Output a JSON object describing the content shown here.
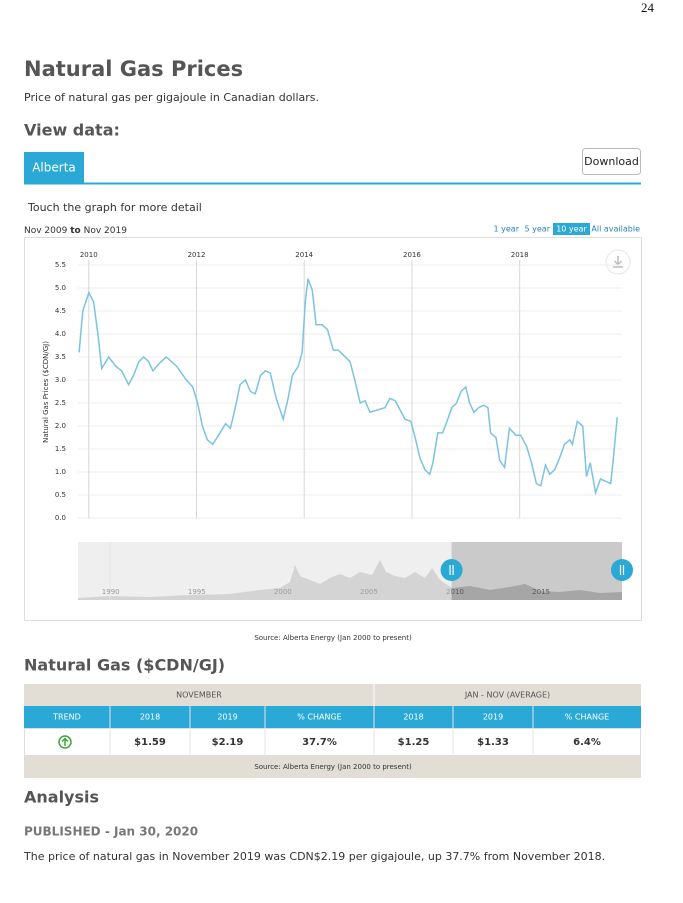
{
  "page_number": "24",
  "header": {
    "title": "Natural Gas Prices",
    "subtitle": "Price of natural gas per gigajoule in Canadian dollars."
  },
  "view_data": {
    "heading": "View data:",
    "tab": "Alberta",
    "download": "Download"
  },
  "hint": "Touch the graph for more detail",
  "date_range": {
    "from": "Nov 2009",
    "sep": "to",
    "to": "Nov 2019"
  },
  "range_buttons": [
    "1 year",
    "5 year",
    "10 year",
    "All available"
  ],
  "chart_data": {
    "type": "line",
    "y_label": "Natural Gas Prices ($CDN/GJ)",
    "color": "#7cc3e0",
    "xlim": [
      2009.8,
      2019.9
    ],
    "xticks": [
      2010,
      2012,
      2014,
      2016,
      2018
    ],
    "ylim": [
      0,
      5.5
    ],
    "yticks": [
      {
        "value": 0,
        "label": "0.0"
      },
      0.5,
      {
        "value": 1,
        "label": "1.0"
      },
      1.5,
      {
        "value": 2,
        "label": "2.0"
      },
      2.5,
      {
        "value": 3,
        "label": "3.0"
      },
      3.5,
      {
        "value": 4,
        "label": "4.0"
      },
      4.5,
      {
        "value": 5,
        "label": "5.0"
      },
      5.5
    ],
    "grid": true,
    "x": [
      2009.82,
      2009.89,
      2010.0,
      2010.09,
      2010.17,
      2010.24,
      2010.37,
      2010.5,
      2010.61,
      2010.74,
      2010.83,
      2010.93,
      2011.02,
      2011.11,
      2011.19,
      2011.3,
      2011.44,
      2011.63,
      2011.81,
      2011.93,
      2012.02,
      2012.11,
      2012.2,
      2012.3,
      2012.41,
      2012.54,
      2012.63,
      2012.72,
      2012.81,
      2012.91,
      2013.0,
      2013.09,
      2013.19,
      2013.28,
      2013.37,
      2013.48,
      2013.61,
      2013.7,
      2013.78,
      2013.89,
      2013.96,
      2014.02,
      2014.07,
      2014.15,
      2014.22,
      2014.33,
      2014.43,
      2014.54,
      2014.63,
      2014.72,
      2014.85,
      2014.94,
      2015.04,
      2015.13,
      2015.22,
      2015.37,
      2015.5,
      2015.59,
      2015.69,
      2015.78,
      2015.87,
      2015.98,
      2016.07,
      2016.15,
      2016.24,
      2016.33,
      2016.39,
      2016.48,
      2016.57,
      2016.65,
      2016.74,
      2016.83,
      2016.91,
      2017.0,
      2017.07,
      2017.15,
      2017.24,
      2017.33,
      2017.41,
      2017.46,
      2017.56,
      2017.63,
      2017.72,
      2017.81,
      2017.93,
      2018.02,
      2018.13,
      2018.22,
      2018.31,
      2018.39,
      2018.48,
      2018.56,
      2018.65,
      2018.74,
      2018.83,
      2018.93,
      2018.98,
      2019.07,
      2019.17,
      2019.24,
      2019.31,
      2019.41,
      2019.5,
      2019.59,
      2019.69,
      2019.74,
      2019.81
    ],
    "values": [
      3.6,
      4.5,
      4.9,
      4.7,
      4.0,
      3.25,
      3.5,
      3.3,
      3.2,
      2.9,
      3.1,
      3.4,
      3.5,
      3.4,
      3.2,
      3.35,
      3.5,
      3.3,
      3.0,
      2.85,
      2.5,
      2.0,
      1.7,
      1.6,
      1.8,
      2.05,
      1.95,
      2.4,
      2.9,
      3.0,
      2.75,
      2.7,
      3.1,
      3.2,
      3.15,
      2.6,
      2.15,
      2.6,
      3.1,
      3.3,
      3.6,
      4.7,
      5.2,
      4.95,
      4.2,
      4.2,
      4.1,
      3.65,
      3.65,
      3.55,
      3.4,
      3.0,
      2.5,
      2.55,
      2.3,
      2.35,
      2.4,
      2.6,
      2.55,
      2.35,
      2.15,
      2.1,
      1.7,
      1.3,
      1.05,
      0.95,
      1.2,
      1.85,
      1.85,
      2.1,
      2.4,
      2.5,
      2.75,
      2.85,
      2.5,
      2.3,
      2.4,
      2.45,
      2.4,
      1.85,
      1.75,
      1.25,
      1.1,
      1.95,
      1.8,
      1.8,
      1.55,
      1.2,
      0.75,
      0.7,
      1.15,
      0.95,
      1.05,
      1.3,
      1.6,
      1.7,
      1.6,
      2.1,
      2.0,
      0.9,
      1.2,
      0.55,
      0.85,
      0.8,
      0.75,
      1.3,
      2.19
    ],
    "source": "Source: Alberta Energy (Jan 2000 to present)"
  },
  "navigator": {
    "xlim": [
      1988.1,
      2019.7
    ],
    "xticks": [
      1990,
      1995,
      2000,
      2005,
      2010,
      2015
    ]
  },
  "table": {
    "title": "Natural Gas ($CDN/GJ)",
    "group_headers": [
      "NOVEMBER",
      "JAN - NOV (AVERAGE)"
    ],
    "columns": [
      "TREND",
      "2018",
      "2019",
      "% CHANGE",
      "2018",
      "2019",
      "% CHANGE"
    ],
    "row": [
      "$1.59",
      "$2.19",
      "37.7%",
      "$1.25",
      "$1.33",
      "6.4%"
    ],
    "source": "Source: Alberta Energy (Jan 2000 to present)"
  },
  "analysis": {
    "heading": "Analysis",
    "published": "PUBLISHED - Jan 30, 2020",
    "text": "The price of natural gas in November 2019 was CDN$2.19 per gigajoule, up 37.7% from November 2018."
  }
}
